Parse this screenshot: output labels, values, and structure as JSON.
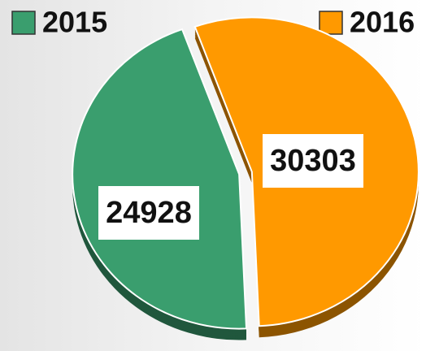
{
  "chart_data": {
    "type": "pie",
    "categories": [
      "2015",
      "2016"
    ],
    "values": [
      24928,
      30303
    ],
    "colors": [
      "#3a9e6e",
      "#ff9900"
    ],
    "legend": "top"
  }
}
